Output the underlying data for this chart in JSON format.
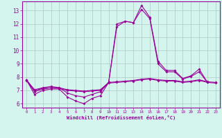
{
  "xlabel": "Windchill (Refroidissement éolien,°C)",
  "x_values": [
    0,
    1,
    2,
    3,
    4,
    5,
    6,
    7,
    8,
    9,
    10,
    11,
    12,
    13,
    14,
    15,
    16,
    17,
    18,
    19,
    20,
    21,
    22,
    23
  ],
  "line1": [
    7.8,
    6.7,
    7.0,
    7.1,
    7.1,
    6.5,
    6.2,
    6.0,
    6.4,
    6.6,
    7.6,
    12.0,
    12.2,
    12.1,
    13.4,
    12.5,
    9.2,
    8.5,
    8.5,
    7.9,
    8.1,
    8.6,
    7.6,
    null
  ],
  "line2": [
    7.8,
    6.9,
    7.1,
    7.2,
    7.2,
    6.8,
    6.6,
    6.5,
    6.7,
    6.9,
    7.6,
    11.8,
    12.2,
    12.1,
    13.1,
    12.4,
    9.0,
    8.4,
    8.4,
    7.85,
    8.05,
    8.4,
    7.6,
    null
  ],
  "line3": [
    7.8,
    7.05,
    7.2,
    7.3,
    7.2,
    7.05,
    7.0,
    6.95,
    7.0,
    7.05,
    7.6,
    7.65,
    7.7,
    7.75,
    7.85,
    7.9,
    7.8,
    7.75,
    7.75,
    7.65,
    7.7,
    7.8,
    7.65,
    7.6
  ],
  "line4": [
    7.75,
    7.0,
    7.15,
    7.2,
    7.15,
    7.0,
    6.95,
    6.9,
    6.95,
    7.0,
    7.55,
    7.6,
    7.65,
    7.7,
    7.8,
    7.85,
    7.75,
    7.7,
    7.7,
    7.6,
    7.65,
    7.75,
    7.6,
    7.55
  ],
  "line_color": "#990099",
  "bg_color": "#d4f5ee",
  "grid_color": "#b0c8c4",
  "ylim": [
    5.7,
    13.7
  ],
  "yticks": [
    6,
    7,
    8,
    9,
    10,
    11,
    12,
    13
  ],
  "xlim": [
    -0.5,
    23.5
  ],
  "xticks": [
    0,
    1,
    2,
    3,
    4,
    5,
    6,
    7,
    8,
    9,
    10,
    11,
    12,
    13,
    14,
    15,
    16,
    17,
    18,
    19,
    20,
    21,
    22,
    23
  ]
}
